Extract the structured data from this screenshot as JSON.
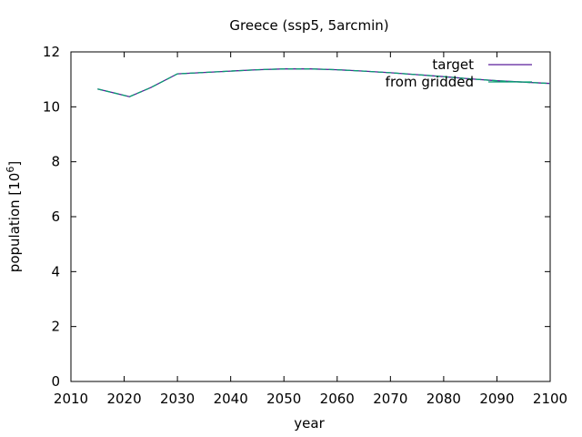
{
  "chart_data": {
    "type": "line",
    "title": "Greece (ssp5, 5arcmin)",
    "xlabel": "year",
    "ylabel": "population [10",
    "ylabel_sup": "6",
    "ylabel_close": "]",
    "xlim": [
      2010,
      2100
    ],
    "ylim": [
      0,
      12
    ],
    "xticks": [
      2010,
      2020,
      2030,
      2040,
      2050,
      2060,
      2070,
      2080,
      2090,
      2100
    ],
    "yticks": [
      0,
      2,
      4,
      6,
      8,
      10,
      12
    ],
    "grid": false,
    "legend_position": "top-right",
    "series": [
      {
        "name": "target",
        "color": "#5a1e9a",
        "x": [
          2015,
          2021,
          2025,
          2030,
          2035,
          2040,
          2045,
          2050,
          2055,
          2060,
          2065,
          2070,
          2075,
          2080,
          2085,
          2090,
          2095,
          2100
        ],
        "y": [
          10.65,
          10.37,
          10.7,
          11.2,
          11.25,
          11.3,
          11.35,
          11.38,
          11.38,
          11.35,
          11.3,
          11.24,
          11.17,
          11.1,
          11.02,
          10.95,
          10.9,
          10.85
        ]
      },
      {
        "name": "from gridded",
        "color": "#0a9e73",
        "x": [
          2015,
          2021,
          2025,
          2030,
          2035,
          2040,
          2045,
          2050,
          2055,
          2060,
          2065,
          2070,
          2075,
          2080,
          2085,
          2090,
          2095,
          2100
        ],
        "y": [
          10.65,
          10.37,
          10.7,
          11.2,
          11.25,
          11.3,
          11.35,
          11.38,
          11.38,
          11.35,
          11.3,
          11.24,
          11.17,
          11.1,
          11.02,
          10.95,
          10.9,
          10.85
        ]
      }
    ]
  }
}
